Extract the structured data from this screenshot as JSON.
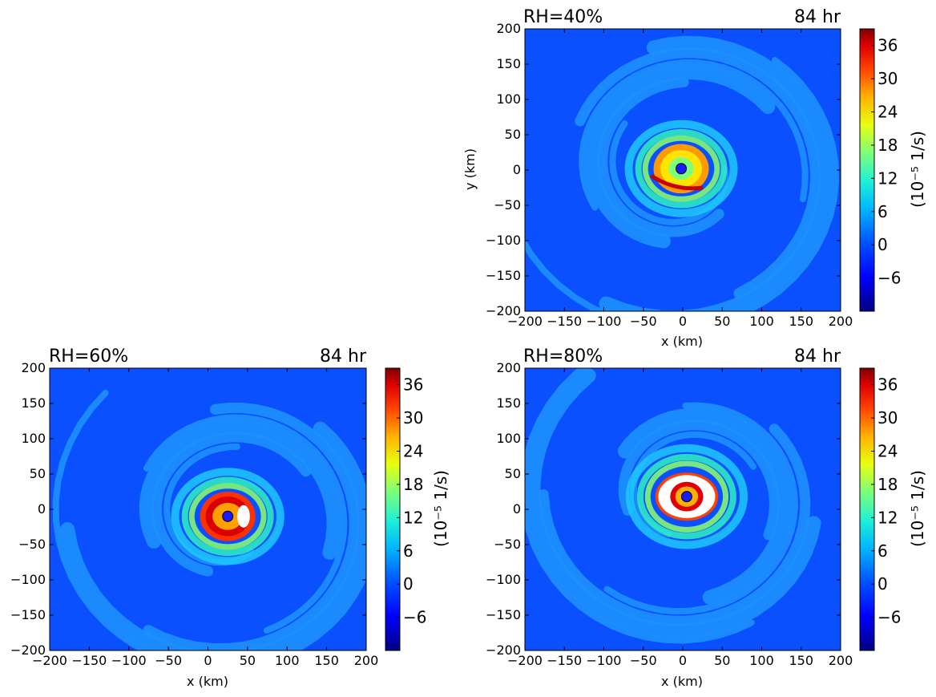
{
  "chart_data": [
    {
      "type": "heatmap",
      "panel": "top-right",
      "title_left": "RH=40%",
      "title_right": "84 hr",
      "xlabel": "x (km)",
      "ylabel": "y (km)",
      "xlim": [
        -200,
        200
      ],
      "ylim": [
        -200,
        200
      ],
      "xticks": [
        "−200",
        "−150",
        "−100",
        "−50",
        "0",
        "50",
        "100",
        "150",
        "200"
      ],
      "yticks": [
        "200",
        "150",
        "100",
        "50",
        "0",
        "−50",
        "−100",
        "−150",
        "−200"
      ],
      "center": [
        -2,
        2
      ],
      "eyewall_radius_km": 35,
      "colorbar": {
        "label": "(10⁻⁵  1/s)",
        "ticks": [
          "36",
          "30",
          "24",
          "18",
          "12",
          "6",
          "0",
          "−6"
        ],
        "min": -12,
        "max": 39
      }
    },
    {
      "type": "heatmap",
      "panel": "bottom-left",
      "title_left": "RH=60%",
      "title_right": "84 hr",
      "xlabel": "x (km)",
      "ylabel": "",
      "xlim": [
        -200,
        200
      ],
      "ylim": [
        -200,
        200
      ],
      "xticks": [
        "−200",
        "−150",
        "−100",
        "−50",
        "0",
        "50",
        "100",
        "150",
        "200"
      ],
      "yticks": [
        "200",
        "150",
        "100",
        "50",
        "0",
        "−50",
        "−100",
        "−150",
        "−200"
      ],
      "center": [
        25,
        -10
      ],
      "eyewall_radius_km": 35,
      "colorbar": {
        "label": "(10⁻⁵  1/s)",
        "ticks": [
          "36",
          "30",
          "24",
          "18",
          "12",
          "6",
          "0",
          "−6"
        ],
        "min": -12,
        "max": 39
      }
    },
    {
      "type": "heatmap",
      "panel": "bottom-right",
      "title_left": "RH=80%",
      "title_right": "84 hr",
      "xlabel": "x (km)",
      "ylabel": "",
      "xlim": [
        -200,
        200
      ],
      "ylim": [
        -200,
        200
      ],
      "xticks": [
        "−200",
        "−150",
        "−100",
        "−50",
        "0",
        "50",
        "100",
        "150",
        "200"
      ],
      "yticks": [
        "200",
        "150",
        "100",
        "50",
        "0",
        "−50",
        "−100",
        "−150",
        "−200"
      ],
      "center": [
        5,
        18
      ],
      "eyewall_radius_km": 38,
      "colorbar": {
        "label": "(10⁻⁵  1/s)",
        "ticks": [
          "36",
          "30",
          "24",
          "18",
          "12",
          "6",
          "0",
          "−6"
        ],
        "min": -12,
        "max": 39
      }
    }
  ],
  "colors": {
    "background_field": "#0a50ff",
    "band_light": "#1e90ff",
    "center_marker": "#1a1aff"
  }
}
